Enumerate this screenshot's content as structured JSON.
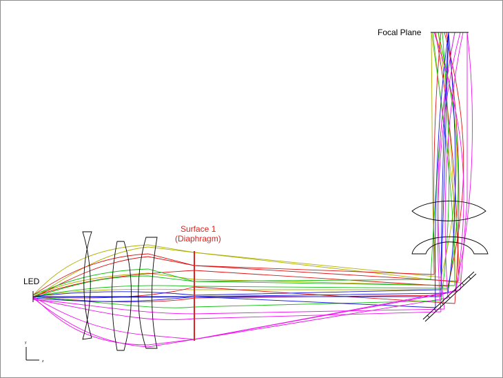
{
  "labels": {
    "source": "LED",
    "focal_plane": "Focal Plane",
    "surface_line1": "Surface 1",
    "surface_line2": "(Diaphragm)"
  },
  "axes": {
    "vertical": "y",
    "horizontal": "z"
  },
  "colors": {
    "frame": "#8c8c8c",
    "lens": "#000000",
    "diaphragm": "#e0201c",
    "ray_yellow": "#b0b000",
    "ray_red": "#e01010",
    "ray_green": "#10c010",
    "ray_blue": "#1010e0",
    "ray_magenta": "#f010f0"
  }
}
